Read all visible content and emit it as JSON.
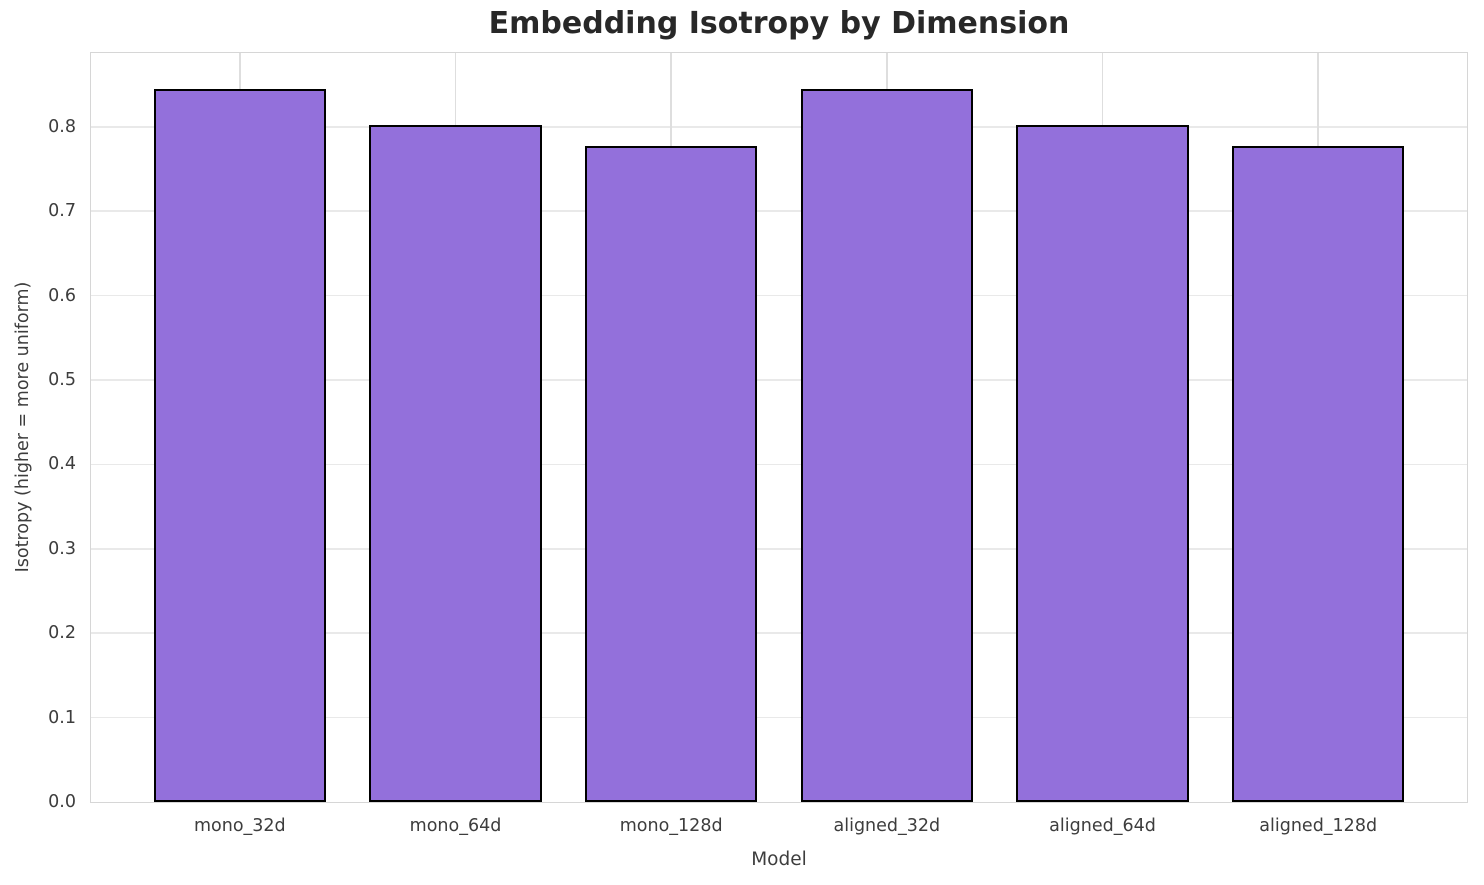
{
  "chart_data": {
    "type": "bar",
    "title": "Embedding Isotropy by Dimension",
    "xlabel": "Model",
    "ylabel": "Isotropy (higher = more uniform)",
    "categories": [
      "mono_32d",
      "mono_64d",
      "mono_128d",
      "aligned_32d",
      "aligned_64d",
      "aligned_128d"
    ],
    "values": [
      0.845,
      0.802,
      0.777,
      0.845,
      0.802,
      0.777
    ],
    "ylim": [
      0,
      0.8875
    ],
    "yticks": [
      0.0,
      0.1,
      0.2,
      0.3,
      0.4,
      0.5,
      0.6,
      0.7,
      0.8
    ],
    "ytick_labels": [
      "0.0",
      "0.1",
      "0.2",
      "0.3",
      "0.4",
      "0.5",
      "0.6",
      "0.7",
      "0.8"
    ],
    "grid": true,
    "legend": "none",
    "bar_color": "#9370DB",
    "bar_edge_color": "#000000",
    "hgrid_color": "#e9e9e9",
    "vgrid_color": "#dedede",
    "spine_color": "#d6d6d6",
    "bar_width_fraction": 0.8,
    "x_margin": 0.69
  }
}
